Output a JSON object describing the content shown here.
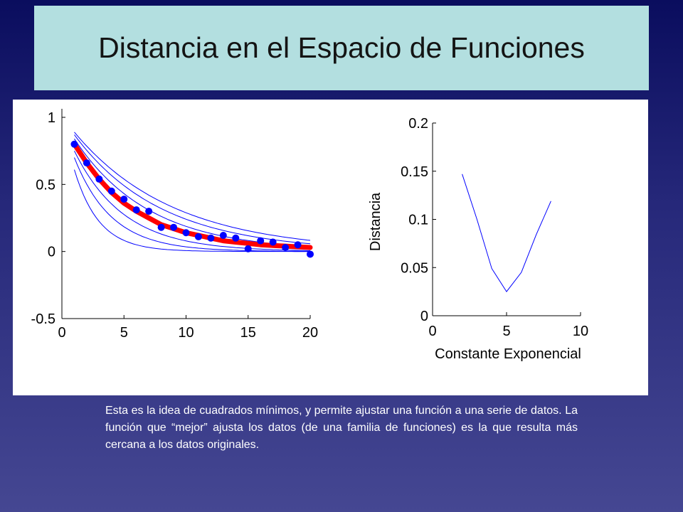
{
  "slide": {
    "title": "Distancia en el Espacio de Funciones",
    "caption": "Esta es la idea de cuadrados mínimos, y permite ajustar una función a una serie de datos. La función que “mejor” ajusta los datos (de una familia de funciones) es la que resulta más cercana a los datos originales."
  },
  "colors": {
    "background_top": "#0a0d5e",
    "background_bottom": "#454792",
    "title_box": "#b3dfe0",
    "curve_family": "#0000ff",
    "data_points": "#0000ff",
    "best_fit": "#ff0000"
  },
  "chart_data": [
    {
      "type": "scatter",
      "title": "",
      "xlabel": "",
      "ylabel": "",
      "xlim": [
        0,
        20
      ],
      "ylim": [
        -0.5,
        1
      ],
      "x_ticks": [
        "0",
        "5",
        "10",
        "15",
        "20"
      ],
      "y_ticks": [
        "1",
        "0.5",
        "0",
        "-0.5"
      ],
      "grid": false,
      "points": {
        "x": [
          1,
          2,
          3,
          4,
          5,
          6,
          7,
          8,
          9,
          10,
          11,
          12,
          13,
          14,
          15,
          16,
          17,
          18,
          19,
          20
        ],
        "y": [
          0.8,
          0.66,
          0.54,
          0.45,
          0.39,
          0.31,
          0.3,
          0.18,
          0.18,
          0.14,
          0.11,
          0.1,
          0.12,
          0.1,
          0.02,
          0.08,
          0.07,
          0.03,
          0.05,
          -0.02
        ]
      },
      "best_fit": {
        "x": [
          1,
          2,
          3,
          4,
          5,
          6,
          7,
          8,
          9,
          10,
          11,
          12,
          13,
          14,
          15,
          16,
          17,
          18,
          19,
          20
        ],
        "y": [
          0.8,
          0.66,
          0.54,
          0.44,
          0.36,
          0.3,
          0.25,
          0.2,
          0.17,
          0.14,
          0.12,
          0.1,
          0.08,
          0.07,
          0.06,
          0.05,
          0.045,
          0.04,
          0.035,
          0.03
        ]
      },
      "curve_family": [
        {
          "y_at_1": 0.61,
          "decay": 2.0,
          "offset": 0.0
        },
        {
          "y_at_1": 0.7,
          "decay": 3.0,
          "offset": 0.0
        },
        {
          "y_at_1": 0.75,
          "decay": 4.0,
          "offset": 0.0
        },
        {
          "y_at_1": 0.81,
          "decay": 5.0,
          "offset": 0.0
        },
        {
          "y_at_1": 0.84,
          "decay": 6.0,
          "offset": 0.0
        },
        {
          "y_at_1": 0.87,
          "decay": 7.0,
          "offset": 0.0
        },
        {
          "y_at_1": 0.89,
          "decay": 8.0,
          "offset": 0.0
        }
      ]
    },
    {
      "type": "line",
      "title": "",
      "xlabel": "Constante Exponencial",
      "ylabel": "Distancia",
      "xlim": [
        0,
        10
      ],
      "ylim": [
        0,
        0.2
      ],
      "x_ticks": [
        "0",
        "5",
        "10"
      ],
      "y_ticks": [
        "0.2",
        "0.15",
        "0.1",
        "0.05",
        "0"
      ],
      "grid": false,
      "series": [
        {
          "x": [
            2,
            3,
            4,
            5,
            6,
            7,
            8
          ],
          "y": [
            0.147,
            0.1,
            0.049,
            0.025,
            0.045,
            0.084,
            0.119
          ]
        }
      ]
    }
  ]
}
